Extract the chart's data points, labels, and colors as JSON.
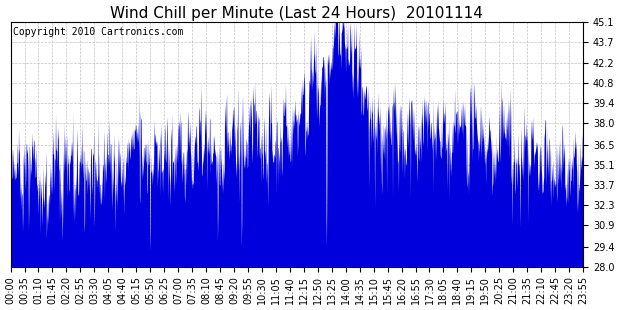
{
  "title": "Wind Chill per Minute (Last 24 Hours)  20101114",
  "copyright_text": "Copyright 2010 Cartronics.com",
  "y_ticks": [
    28.0,
    29.4,
    30.9,
    32.3,
    33.7,
    35.1,
    36.5,
    38.0,
    39.4,
    40.8,
    42.2,
    43.7,
    45.1
  ],
  "ylim": [
    28.0,
    45.1
  ],
  "x_tick_labels": [
    "00:00",
    "00:35",
    "01:10",
    "01:45",
    "02:20",
    "02:55",
    "03:30",
    "04:05",
    "04:40",
    "05:15",
    "05:50",
    "06:25",
    "07:00",
    "07:35",
    "08:10",
    "08:45",
    "09:20",
    "09:55",
    "10:30",
    "11:05",
    "11:40",
    "12:15",
    "12:50",
    "13:25",
    "14:00",
    "14:35",
    "15:10",
    "15:45",
    "16:20",
    "16:55",
    "17:30",
    "18:05",
    "18:40",
    "19:15",
    "19:50",
    "20:25",
    "21:00",
    "21:35",
    "22:10",
    "22:45",
    "23:20",
    "23:55"
  ],
  "bar_color": "#0000dd",
  "background_color": "#ffffff",
  "grid_color": "#bbbbbb",
  "title_fontsize": 11,
  "copyright_fontsize": 7,
  "tick_fontsize": 7
}
